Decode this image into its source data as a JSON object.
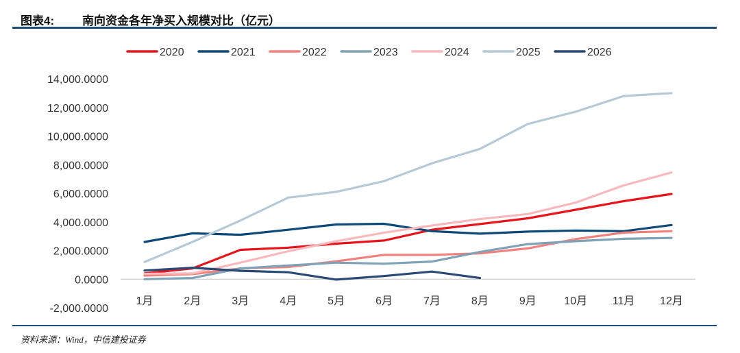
{
  "header": {
    "prefix": "图表4:",
    "title": "南向资金各年净买入规模对比（亿元）"
  },
  "footer": {
    "source": "资料来源：Wind，中信建投证券"
  },
  "chart_data": {
    "type": "line",
    "title": "南向资金各年净买入规模对比（亿元）",
    "xlabel": "",
    "ylabel": "",
    "categories": [
      "1月",
      "2月",
      "3月",
      "4月",
      "5月",
      "6月",
      "7月",
      "8月",
      "9月",
      "10月",
      "11月",
      "12月"
    ],
    "ylim": [
      -2000,
      14000
    ],
    "yticks": [
      -2000,
      0,
      2000,
      4000,
      6000,
      8000,
      10000,
      12000,
      14000
    ],
    "ytick_labels": [
      "-2,000.0000",
      "0.0000",
      "2,000.0000",
      "4,000.0000",
      "6,000.0000",
      "8,000.0000",
      "10,000.0000",
      "12,000.0000",
      "14,000.0000"
    ],
    "grid": false,
    "legend_position": "top",
    "series": [
      {
        "name": "2020",
        "color": "#e8141c",
        "values": [
          400,
          750,
          2050,
          2200,
          2480,
          2700,
          3450,
          3850,
          4250,
          4850,
          5450,
          5950
        ]
      },
      {
        "name": "2021",
        "color": "#0d4a78",
        "values": [
          2600,
          3200,
          3100,
          3450,
          3820,
          3870,
          3350,
          3180,
          3320,
          3400,
          3350,
          3780
        ]
      },
      {
        "name": "2022",
        "color": "#f2807c",
        "values": [
          250,
          350,
          750,
          850,
          1250,
          1700,
          1700,
          1800,
          2150,
          2800,
          3250,
          3350
        ]
      },
      {
        "name": "2023",
        "color": "#7fa2b6",
        "values": [
          0,
          80,
          750,
          950,
          1150,
          1080,
          1230,
          1900,
          2450,
          2650,
          2820,
          2880
        ]
      },
      {
        "name": "2024",
        "color": "#f9b8bb",
        "values": [
          380,
          400,
          1150,
          1950,
          2650,
          3250,
          3750,
          4200,
          4550,
          5350,
          6550,
          7450
        ]
      },
      {
        "name": "2025",
        "color": "#b5c9d6",
        "values": [
          1200,
          2600,
          4100,
          5700,
          6100,
          6850,
          8100,
          9100,
          10850,
          11700,
          12800,
          13000
        ]
      },
      {
        "name": "2026",
        "color": "#2a4a75",
        "values": [
          600,
          800,
          580,
          480,
          -30,
          220,
          530,
          80,
          null,
          null,
          null,
          null
        ]
      }
    ]
  }
}
